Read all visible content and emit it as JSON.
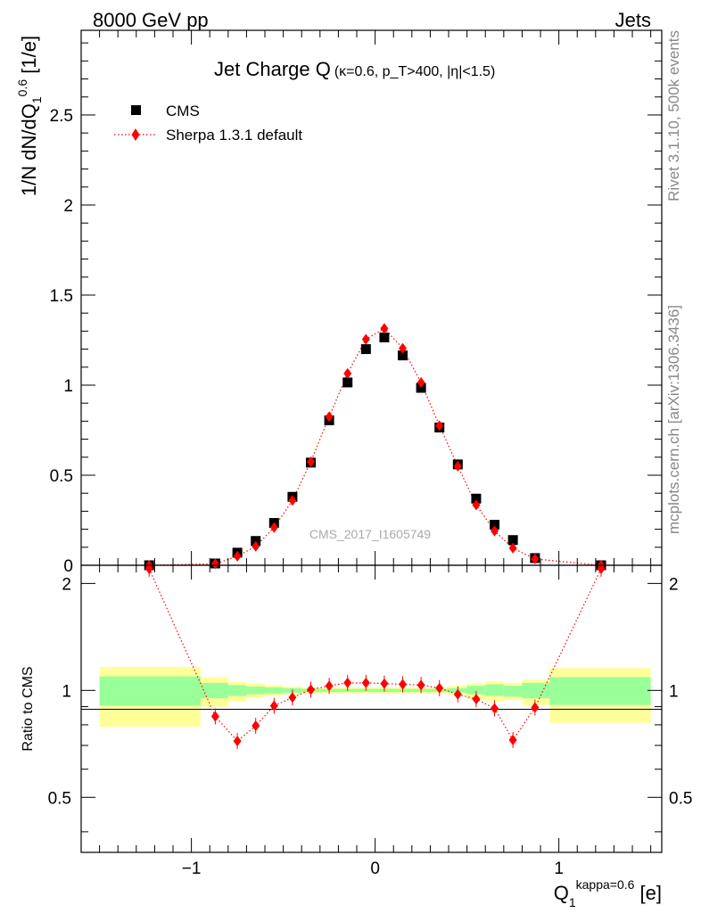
{
  "header": {
    "left": "8000 GeV pp",
    "right": "Jets"
  },
  "side": {
    "rivet": "Rivet 3.1.10,  500k events",
    "mcplots": "mcplots.cern.ch [arXiv:1306.3436]"
  },
  "chart_data": [
    {
      "type": "scatter",
      "title_main": "Jet Charge Q",
      "title_sub": "(κ=0.6, p_T>400, |η|<1.5)",
      "ylabel": "1/N dN/dQ_1^0.6 [1/e]",
      "watermark": "CMS_2017_I1605749",
      "xlim": [
        -1.6,
        1.56
      ],
      "ylim": [
        0,
        2.97
      ],
      "yticks": [
        0,
        0.5,
        1,
        1.5,
        2,
        2.5
      ],
      "ytick_labels": [
        "0",
        "0.5",
        "1",
        "1.5",
        "2",
        "2.5"
      ],
      "legend_position": "top-left",
      "legend": [
        "CMS",
        "Sherpa 1.3.1 default"
      ],
      "series": [
        {
          "name": "CMS",
          "marker": "square",
          "color": "#000000",
          "x": [
            -1.23,
            -0.87,
            -0.75,
            -0.65,
            -0.55,
            -0.45,
            -0.35,
            -0.25,
            -0.15,
            -0.05,
            0.05,
            0.15,
            0.25,
            0.35,
            0.45,
            0.55,
            0.65,
            0.75,
            0.87,
            1.23
          ],
          "y": [
            0.0,
            0.01,
            0.07,
            0.135,
            0.235,
            0.38,
            0.57,
            0.805,
            1.015,
            1.2,
            1.265,
            1.165,
            0.985,
            0.765,
            0.56,
            0.37,
            0.225,
            0.14,
            0.04,
            0.0
          ]
        },
        {
          "name": "Sherpa 1.3.1 default",
          "marker": "diamond",
          "color": "#ff0000",
          "x": [
            -1.23,
            -0.87,
            -0.75,
            -0.65,
            -0.55,
            -0.45,
            -0.35,
            -0.25,
            -0.15,
            -0.05,
            0.05,
            0.15,
            0.25,
            0.35,
            0.45,
            0.55,
            0.65,
            0.75,
            0.87,
            1.23
          ],
          "y": [
            0.0,
            0.008,
            0.05,
            0.105,
            0.21,
            0.36,
            0.575,
            0.825,
            1.065,
            1.255,
            1.315,
            1.205,
            1.015,
            0.775,
            0.55,
            0.335,
            0.19,
            0.095,
            0.035,
            0.0
          ]
        }
      ]
    },
    {
      "type": "scatter",
      "ylabel": "Ratio to CMS",
      "xlabel": "Q_1^kappa=0.6 [e]",
      "xlim": [
        -1.6,
        1.56
      ],
      "ylim": [
        0.35,
        2.25
      ],
      "xticks": [
        -1,
        0,
        1
      ],
      "xtick_labels": [
        "−1",
        "0",
        "1"
      ],
      "yticks": [
        0.5,
        1,
        2
      ],
      "ytick_labels": [
        "0.5",
        "1",
        "2"
      ],
      "uncertainty_bands": {
        "edges": [
          -1.5,
          -0.95,
          -0.8,
          -0.7,
          -0.6,
          -0.5,
          -0.4,
          -0.3,
          -0.2,
          -0.1,
          0,
          0.1,
          0.2,
          0.3,
          0.4,
          0.5,
          0.6,
          0.7,
          0.8,
          0.95,
          1.5
        ],
        "inner_lo": [
          0.905,
          0.95,
          0.965,
          0.975,
          0.98,
          0.985,
          0.99,
          0.99,
          0.99,
          0.99,
          0.99,
          0.99,
          0.99,
          0.99,
          0.985,
          0.975,
          0.965,
          0.96,
          0.95,
          0.91
        ],
        "inner_hi": [
          1.095,
          1.05,
          1.035,
          1.025,
          1.02,
          1.015,
          1.01,
          1.01,
          1.01,
          1.01,
          1.01,
          1.01,
          1.01,
          1.01,
          1.015,
          1.03,
          1.04,
          1.03,
          1.05,
          1.09
        ],
        "outer_lo": [
          0.79,
          0.9,
          0.93,
          0.955,
          0.965,
          0.975,
          0.98,
          0.98,
          0.98,
          0.98,
          0.98,
          0.98,
          0.98,
          0.98,
          0.97,
          0.945,
          0.93,
          0.94,
          0.91,
          0.81
        ],
        "outer_hi": [
          1.165,
          1.09,
          1.055,
          1.045,
          1.035,
          1.025,
          1.02,
          1.02,
          1.02,
          1.02,
          1.02,
          1.02,
          1.02,
          1.02,
          1.03,
          1.045,
          1.06,
          1.05,
          1.07,
          1.155
        ],
        "inner_color": "#99ff99",
        "outer_color": "#ffff99"
      },
      "series": [
        {
          "name": "Sherpa 1.3.1 default",
          "marker": "diamond",
          "color": "#ff0000",
          "x": [
            -1.23,
            -0.87,
            -0.75,
            -0.65,
            -0.55,
            -0.45,
            -0.35,
            -0.25,
            -0.15,
            -0.05,
            0.05,
            0.15,
            0.25,
            0.35,
            0.45,
            0.55,
            0.65,
            0.75,
            0.87,
            1.23
          ],
          "y": [
            2.2,
            0.845,
            0.72,
            0.795,
            0.905,
            0.955,
            1.005,
            1.03,
            1.05,
            1.05,
            1.045,
            1.04,
            1.035,
            1.015,
            0.975,
            0.945,
            0.89,
            0.725,
            0.895,
            2.2
          ]
        }
      ]
    }
  ]
}
